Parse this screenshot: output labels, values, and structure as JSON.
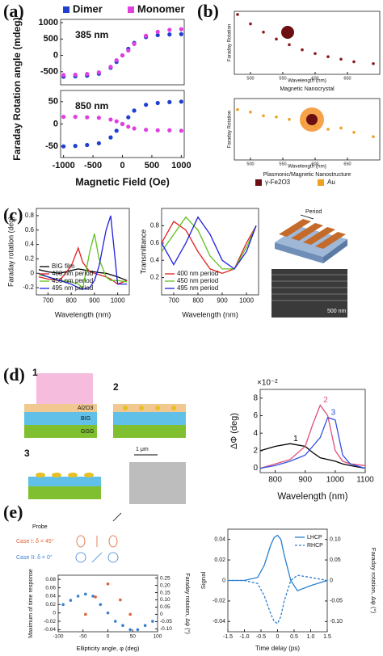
{
  "panel_labels": [
    "(a)",
    "(b)",
    "(c)",
    "(d)",
    "(e)"
  ],
  "panel_b_legend": [
    "γ-Fe2O3",
    "Au"
  ],
  "panel_c_labels": [
    "Period",
    "500 nm"
  ],
  "panel_d_labels": {
    "steps": [
      "1",
      "2",
      "3"
    ],
    "scale": "1 μm",
    "layers": [
      "Al2O3",
      "BIG",
      "GGG"
    ]
  },
  "panel_e_labels": [
    "Probe",
    "Case I: δ = 45°",
    "Case II: δ = 0°"
  ],
  "chart_data": [
    {
      "type": "scatter",
      "annotation": "385 nm",
      "ylabel": "Faraday Rotation angle (mdeg)",
      "legend": "upper center",
      "x": [
        -1000,
        -800,
        -600,
        -400,
        -200,
        -100,
        0,
        100,
        200,
        400,
        600,
        800,
        1000
      ],
      "xlim": [
        -1050,
        1050
      ],
      "ylim": [
        -900,
        1100
      ],
      "yticks": [
        -500,
        0,
        500,
        1000
      ],
      "series": [
        {
          "name": "Dimer",
          "color": "#1f3fd0",
          "values": [
            -650,
            -640,
            -620,
            -560,
            -380,
            -200,
            0,
            200,
            380,
            560,
            620,
            640,
            650
          ]
        },
        {
          "name": "Monomer",
          "color": "#e040e0",
          "values": [
            -600,
            -590,
            -570,
            -520,
            -350,
            -150,
            0,
            150,
            350,
            600,
            720,
            780,
            800
          ]
        }
      ]
    },
    {
      "type": "scatter",
      "annotation": "850 nm",
      "xlabel": "Magnetic Field (Oe)",
      "x": [
        -1000,
        -800,
        -600,
        -400,
        -200,
        -100,
        0,
        100,
        200,
        400,
        600,
        800,
        1000
      ],
      "xlim": [
        -1050,
        1050
      ],
      "xticks": [
        -1000,
        -500,
        0,
        500,
        1000
      ],
      "ylim": [
        -75,
        75
      ],
      "yticks": [
        -50,
        0,
        50
      ],
      "series": [
        {
          "name": "Dimer",
          "color": "#1f3fd0",
          "values": [
            -50,
            -49,
            -47,
            -43,
            -30,
            -15,
            0,
            15,
            30,
            43,
            47,
            49,
            50
          ]
        },
        {
          "name": "Monomer",
          "color": "#e040e0",
          "values": [
            16,
            16,
            15,
            14,
            10,
            6,
            0,
            -6,
            -10,
            -13,
            -14,
            -14,
            -15
          ]
        }
      ]
    },
    {
      "type": "scatter",
      "caption": "Magnetic Nanocrystal",
      "xlabel": "Wavelength (nm)",
      "ylabel": "Faraday Rotation",
      "x": [
        480,
        500,
        520,
        540,
        560,
        580,
        600,
        620,
        640,
        660,
        690
      ],
      "xlim": [
        475,
        700
      ],
      "xticks": [
        500,
        550,
        600,
        650
      ],
      "ylim": [
        0,
        1
      ],
      "series": [
        {
          "color": "#8b1a1a",
          "values": [
            0.95,
            0.8,
            0.67,
            0.56,
            0.47,
            0.39,
            0.33,
            0.28,
            0.24,
            0.2,
            0.17
          ]
        }
      ]
    },
    {
      "type": "scatter",
      "caption": "Plasmonic/Magnetic Nanostructure",
      "xlabel": "Wavelength (nm)",
      "ylabel": "Faraday Rotation",
      "x": [
        480,
        500,
        520,
        540,
        560,
        580,
        600,
        620,
        640,
        660,
        690
      ],
      "xlim": [
        475,
        700
      ],
      "xticks": [
        500,
        550,
        600,
        650
      ],
      "ylim": [
        0,
        1
      ],
      "series": [
        {
          "color": "#f0a020",
          "values": [
            0.82,
            0.78,
            0.72,
            0.7,
            0.66,
            0.6,
            0.55,
            0.5,
            0.52,
            0.45,
            0.38
          ]
        }
      ]
    },
    {
      "type": "line",
      "xlabel": "Wavelength (nm)",
      "ylabel": "Faraday rotation (deg)",
      "legend": "lower left",
      "x": [
        660,
        700,
        750,
        800,
        830,
        850,
        880,
        900,
        920,
        950,
        970,
        1000,
        1040
      ],
      "xlim": [
        650,
        1050
      ],
      "xticks": [
        700,
        800,
        900,
        1000
      ],
      "ylim": [
        -0.3,
        0.9
      ],
      "yticks": [
        -0.2,
        0,
        0.2,
        0.4,
        0.6,
        0.8
      ],
      "series": [
        {
          "name": "BIG film",
          "color": "#000000",
          "values": [
            0.05,
            0.02,
            0,
            0.04,
            0.06,
            0.05,
            0.03,
            0.02,
            0.01,
            0,
            -0.02,
            -0.05,
            -0.1
          ]
        },
        {
          "name": "400 nm period",
          "color": "#e02020",
          "values": [
            -0.05,
            -0.08,
            -0.1,
            0.1,
            0.35,
            0.15,
            0.02,
            0,
            -0.02,
            -0.05,
            -0.08,
            -0.15,
            -0.1
          ]
        },
        {
          "name": "450 nm period",
          "color": "#60c020",
          "values": [
            -0.02,
            -0.05,
            -0.1,
            -0.12,
            -0.15,
            -0.2,
            0.3,
            0.55,
            0.2,
            -0.05,
            -0.1,
            -0.1,
            -0.12
          ]
        },
        {
          "name": "495 nm period",
          "color": "#2020e0",
          "values": [
            0,
            -0.05,
            -0.1,
            -0.15,
            -0.2,
            -0.22,
            -0.2,
            -0.1,
            0.1,
            0.6,
            0.8,
            -0.15,
            -0.15
          ]
        }
      ]
    },
    {
      "type": "line",
      "xlabel": "Wavelength (nm)",
      "ylabel": "Transmittance",
      "legend": "lower left",
      "x": [
        650,
        700,
        750,
        800,
        850,
        900,
        950,
        1000,
        1040
      ],
      "xlim": [
        650,
        1050
      ],
      "xticks": [
        700,
        800,
        900,
        1000
      ],
      "ylim": [
        0,
        1
      ],
      "yticks": [
        0.2,
        0.4,
        0.6,
        0.8
      ],
      "series": [
        {
          "name": "400 nm period",
          "color": "#e02020",
          "values": [
            0.6,
            0.85,
            0.75,
            0.5,
            0.3,
            0.25,
            0.3,
            0.6,
            0.8
          ]
        },
        {
          "name": "450 nm period",
          "color": "#60c020",
          "values": [
            0.5,
            0.7,
            0.9,
            0.75,
            0.45,
            0.3,
            0.3,
            0.55,
            0.8
          ]
        },
        {
          "name": "495 nm period",
          "color": "#2020e0",
          "values": [
            0.6,
            0.35,
            0.6,
            0.9,
            0.7,
            0.4,
            0.3,
            0.5,
            0.8
          ]
        }
      ]
    },
    {
      "type": "line",
      "xlabel": "Wavelength (nm)",
      "ylabel": "ΔΦ (deg)",
      "scale_note": "×10⁻²",
      "legend": "inline",
      "x": [
        750,
        800,
        850,
        900,
        925,
        950,
        975,
        1000,
        1025,
        1050,
        1100
      ],
      "xlim": [
        750,
        1100
      ],
      "xticks": [
        800,
        900,
        1000,
        1100
      ],
      "ylim": [
        -0.5,
        9
      ],
      "yticks": [
        0,
        2,
        4,
        6,
        8
      ],
      "series": [
        {
          "name": "1",
          "color": "#000000",
          "values": [
            2,
            2.5,
            2.8,
            2.5,
            1.8,
            1.2,
            1,
            0.8,
            0.5,
            0.3,
            0
          ]
        },
        {
          "name": "2",
          "color": "#e0507a",
          "values": [
            0,
            0.5,
            1,
            2.5,
            5,
            7.2,
            6,
            2,
            0.8,
            0.5,
            0.3
          ]
        },
        {
          "name": "3",
          "color": "#3050e0",
          "values": [
            0,
            0.3,
            0.8,
            1.5,
            2.5,
            3.5,
            5.8,
            5.5,
            1.5,
            0.5,
            0
          ]
        }
      ]
    },
    {
      "type": "scatter",
      "xlabel": "Ellipticity angle, φ (deg)",
      "ylabel": "Maximum of time response",
      "y2label": "Faraday rotation, Δψ (°)",
      "x": [
        -90,
        -75,
        -60,
        -45,
        -30,
        -15,
        0,
        15,
        30,
        45,
        60,
        75,
        90
      ],
      "xlim": [
        -100,
        100
      ],
      "xticks": [
        -100,
        -50,
        0,
        50,
        100
      ],
      "ylim": [
        -0.045,
        0.09
      ],
      "yticks": [
        -0.04,
        -0.02,
        0,
        0.02,
        0.04,
        0.06,
        0.08
      ],
      "y2lim": [
        -0.12,
        0.27
      ],
      "y2ticks": [
        {
          "value": -0.1,
          "label": "-0.10"
        },
        -0.05,
        0,
        0.05,
        {
          "value": 0.1,
          "label": "0.10"
        },
        0.15,
        {
          "value": 0.2,
          "label": "0.20"
        },
        0.25
      ],
      "series": [
        {
          "color": "#3a7fd0",
          "values": [
            0.02,
            0.03,
            0.04,
            0.045,
            0.04,
            0.02,
            0,
            -0.02,
            -0.03,
            -0.04,
            -0.04,
            -0.03,
            -0.02
          ]
        },
        {
          "color": "#e06030",
          "axis": "y2",
          "x": [
            -45,
            -25,
            0,
            25,
            45
          ],
          "values": [
            0,
            0.12,
            0.21,
            0.1,
            0
          ]
        }
      ]
    },
    {
      "type": "line",
      "xlabel": "Time delay (ps)",
      "ylabel": "Signal",
      "y2label": "Faraday rotation, Δψ (°)",
      "legend": "upper right",
      "x": [
        -1.5,
        -1,
        -0.6,
        -0.4,
        -0.2,
        -0.1,
        0,
        0.1,
        0.2,
        0.4,
        0.6,
        1,
        1.5
      ],
      "xlim": [
        -1.5,
        1.5
      ],
      "xticks": [
        -1.5,
        {
          "value": -1,
          "label": "-1.0"
        },
        -0.5,
        0,
        0.5,
        {
          "value": 1,
          "label": "1.0"
        },
        1.5
      ],
      "ylim": [
        -0.05,
        0.05
      ],
      "yticks": [
        -0.04,
        -0.02,
        0,
        0.02,
        0.04
      ],
      "y2lim": [
        -0.125,
        0.125
      ],
      "y2ticks": [
        {
          "value": -0.1,
          "label": "-0.10"
        },
        -0.05,
        0,
        0.05,
        {
          "value": 0.1,
          "label": "0.10"
        }
      ],
      "series": [
        {
          "name": "LHCP",
          "color": "#2a7fd0",
          "values": [
            0,
            0,
            0.003,
            0.015,
            0.035,
            0.042,
            0.044,
            0.04,
            0.025,
            0,
            -0.01,
            -0.005,
            0
          ]
        },
        {
          "name": "RHCP",
          "color": "#2a7fd0",
          "dashed": true,
          "values": [
            0,
            0,
            -0.003,
            -0.015,
            -0.033,
            -0.04,
            -0.042,
            -0.035,
            -0.02,
            0,
            0.005,
            0.003,
            0
          ]
        }
      ]
    }
  ]
}
